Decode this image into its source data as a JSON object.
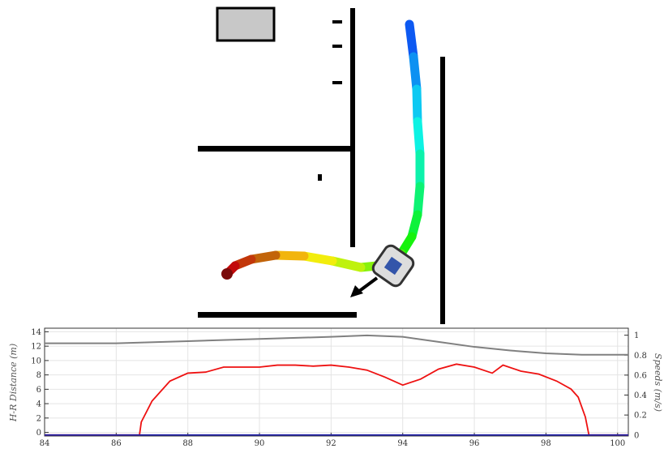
{
  "chart_data": {
    "type": "line",
    "y_label": "H-R Distance (m)",
    "y2_label": "Speeds (m/s)",
    "xlim": [
      84,
      100.3
    ],
    "ylim": [
      -0.5,
      14.5
    ],
    "y2lim": [
      -0.01,
      1.07
    ],
    "xticks": [
      84,
      86,
      88,
      90,
      92,
      94,
      96,
      98,
      100
    ],
    "yticks": [
      0,
      2,
      4,
      6,
      8,
      10,
      12,
      14
    ],
    "y2ticks": [
      0,
      0.2,
      0.4,
      0.6,
      0.8,
      1
    ],
    "grid": true,
    "series": [
      {
        "color": "#808080",
        "axis": "y",
        "x": [
          84,
          86,
          88,
          90,
          92,
          93,
          94,
          95,
          96,
          97,
          98,
          99,
          100,
          100.3
        ],
        "values": [
          12.4,
          12.4,
          12.7,
          13.0,
          13.3,
          13.5,
          13.3,
          12.6,
          11.9,
          11.4,
          11.0,
          10.8,
          10.8,
          10.8
        ]
      },
      {
        "color": "#ee1111",
        "axis": "y2",
        "x": [
          84,
          86.65,
          86.7,
          87,
          87.5,
          88,
          88.5,
          89,
          89.5,
          90,
          90.5,
          91,
          91.5,
          92,
          92.5,
          93,
          93.5,
          94,
          94.5,
          95,
          95.5,
          96,
          96.5,
          96.8,
          97.3,
          97.8,
          98.3,
          98.7,
          98.9,
          99.1,
          99.2,
          100.3
        ],
        "values": [
          0,
          0,
          0.13,
          0.34,
          0.54,
          0.62,
          0.63,
          0.68,
          0.68,
          0.68,
          0.7,
          0.7,
          0.69,
          0.7,
          0.68,
          0.65,
          0.58,
          0.5,
          0.56,
          0.66,
          0.71,
          0.68,
          0.62,
          0.7,
          0.64,
          0.61,
          0.54,
          0.46,
          0.38,
          0.18,
          0,
          0
        ]
      },
      {
        "color": "#2222aa",
        "axis": "y2",
        "x": [
          84,
          100.3
        ],
        "values": [
          0,
          0
        ]
      }
    ]
  }
}
